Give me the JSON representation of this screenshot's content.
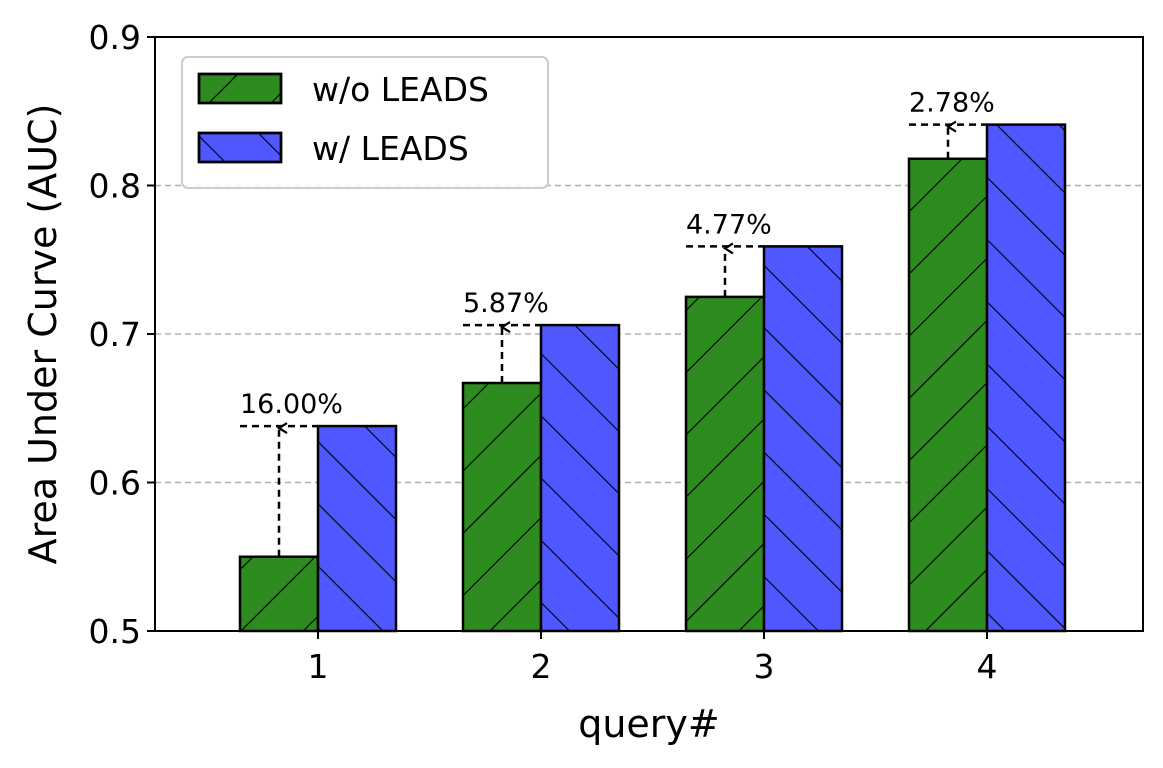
{
  "chart_data": {
    "type": "bar",
    "title": "",
    "xlabel": "query#",
    "ylabel": "Area Under Curve (AUC)",
    "categories": [
      "1",
      "2",
      "3",
      "4"
    ],
    "ylim": [
      0.5,
      0.9
    ],
    "yticks": [
      "0.5",
      "0.6",
      "0.7",
      "0.8",
      "0.9"
    ],
    "grid": "horizontal dashed",
    "legend_position": "top-left",
    "series": [
      {
        "name": "w/o LEADS",
        "values": [
          0.55,
          0.667,
          0.725,
          0.818
        ],
        "color": "#2e8b1f",
        "hatch": "forward-diagonal"
      },
      {
        "name": "w/ LEADS",
        "values": [
          0.638,
          0.706,
          0.759,
          0.841
        ],
        "color": "#4f57ff",
        "hatch": "back-diagonal"
      }
    ],
    "annotations": [
      "16.00%",
      "5.87%",
      "4.77%",
      "2.78%"
    ]
  }
}
